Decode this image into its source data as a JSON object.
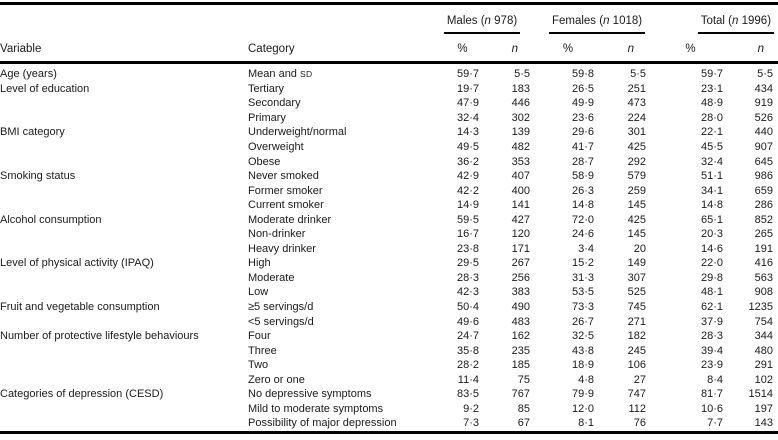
{
  "colors": {
    "background": "#ffffff",
    "text": "#1b1b1b",
    "rule": "#000000"
  },
  "table": {
    "columns": {
      "variable_label": "Variable",
      "category_label": "Category",
      "pct_label": "%",
      "n_label": "n",
      "groups": [
        {
          "label": "Males (n 978)"
        },
        {
          "label": "Females (n 1018)"
        },
        {
          "label": "Total (n 1996)"
        }
      ]
    },
    "rows": [
      {
        "variable": "Age (years)",
        "category": "Mean and ",
        "category_sc": "SD",
        "values": [
          "59·7",
          "5·5",
          "59·8",
          "5·5",
          "59·7",
          "5·5"
        ]
      },
      {
        "variable": "Level of education",
        "category": "Tertiary",
        "values": [
          "19·7",
          "183",
          "26·5",
          "251",
          "23·1",
          "434"
        ]
      },
      {
        "variable": "",
        "category": "Secondary",
        "values": [
          "47·9",
          "446",
          "49·9",
          "473",
          "48·9",
          "919"
        ]
      },
      {
        "variable": "",
        "category": "Primary",
        "values": [
          "32·4",
          "302",
          "23·6",
          "224",
          "28·0",
          "526"
        ]
      },
      {
        "variable": "BMI category",
        "category": "Underweight/normal",
        "values": [
          "14·3",
          "139",
          "29·6",
          "301",
          "22·1",
          "440"
        ]
      },
      {
        "variable": "",
        "category": "Overweight",
        "values": [
          "49·5",
          "482",
          "41·7",
          "425",
          "45·5",
          "907"
        ]
      },
      {
        "variable": "",
        "category": "Obese",
        "values": [
          "36·2",
          "353",
          "28·7",
          "292",
          "32·4",
          "645"
        ]
      },
      {
        "variable": "Smoking status",
        "category": "Never smoked",
        "values": [
          "42·9",
          "407",
          "58·9",
          "579",
          "51·1",
          "986"
        ]
      },
      {
        "variable": "",
        "category": "Former smoker",
        "values": [
          "42·2",
          "400",
          "26·3",
          "259",
          "34·1",
          "659"
        ]
      },
      {
        "variable": "",
        "category": "Current smoker",
        "values": [
          "14·9",
          "141",
          "14·8",
          "145",
          "14·8",
          "286"
        ]
      },
      {
        "variable": "Alcohol consumption",
        "category": "Moderate drinker",
        "values": [
          "59·5",
          "427",
          "72·0",
          "425",
          "65·1",
          "852"
        ]
      },
      {
        "variable": "",
        "category": "Non-drinker",
        "values": [
          "16·7",
          "120",
          "24·6",
          "145",
          "20·3",
          "265"
        ]
      },
      {
        "variable": "",
        "category": "Heavy drinker",
        "values": [
          "23·8",
          "171",
          "3·4",
          "20",
          "14·6",
          "191"
        ]
      },
      {
        "variable": "Level of physical activity (IPAQ)",
        "category": "High",
        "values": [
          "29·5",
          "267",
          "15·2",
          "149",
          "22·0",
          "416"
        ]
      },
      {
        "variable": "",
        "category": "Moderate",
        "values": [
          "28·3",
          "256",
          "31·3",
          "307",
          "29·8",
          "563"
        ]
      },
      {
        "variable": "",
        "category": "Low",
        "values": [
          "42·3",
          "383",
          "53·5",
          "525",
          "48·1",
          "908"
        ]
      },
      {
        "variable": "Fruit and vegetable consumption",
        "category": "≥5 servings/d",
        "values": [
          "50·4",
          "490",
          "73·3",
          "745",
          "62·1",
          "1235"
        ]
      },
      {
        "variable": "",
        "category": "<5 servings/d",
        "values": [
          "49·6",
          "483",
          "26·7",
          "271",
          "37·9",
          "754"
        ]
      },
      {
        "variable": "Number of protective lifestyle behaviours",
        "category": "Four",
        "values": [
          "24·7",
          "162",
          "32·5",
          "182",
          "28·3",
          "344"
        ]
      },
      {
        "variable": "",
        "category": "Three",
        "values": [
          "35·8",
          "235",
          "43·8",
          "245",
          "39·4",
          "480"
        ]
      },
      {
        "variable": "",
        "category": "Two",
        "values": [
          "28·2",
          "185",
          "18·9",
          "106",
          "23·9",
          "291"
        ]
      },
      {
        "variable": "",
        "category": "Zero or one",
        "values": [
          "11·4",
          "75",
          "4·8",
          "27",
          "8·4",
          "102"
        ]
      },
      {
        "variable": "Categories of depression (CESD)",
        "category": "No depressive symptoms",
        "values": [
          "83·5",
          "767",
          "79·9",
          "747",
          "81·7",
          "1514"
        ]
      },
      {
        "variable": "",
        "category": "Mild to moderate symptoms",
        "values": [
          "9·2",
          "85",
          "12·0",
          "112",
          "10·6",
          "197"
        ]
      },
      {
        "variable": "",
        "category": "Possibility of major depression",
        "values": [
          "7·3",
          "67",
          "8·1",
          "76",
          "7·7",
          "143"
        ]
      }
    ]
  }
}
